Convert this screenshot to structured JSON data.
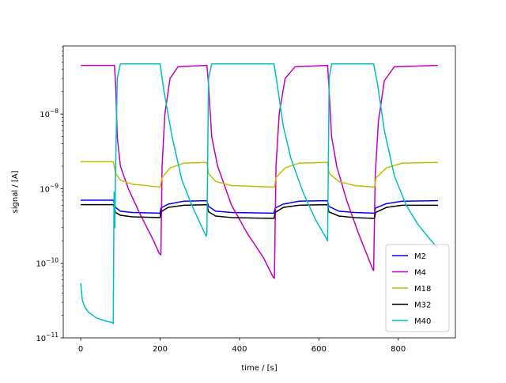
{
  "chart_data": {
    "type": "line",
    "title": "",
    "xlabel": "time / [s]",
    "ylabel": "signal / [A]",
    "yscale": "log",
    "xlim": [
      -44,
      944
    ],
    "ylim": [
      1e-11,
      8.2e-08
    ],
    "xticks": [
      0,
      200,
      400,
      600,
      800
    ],
    "xtick_labels": [
      "0",
      "200",
      "400",
      "600",
      "800"
    ],
    "yticks": [
      1e-11,
      1e-10,
      1e-09,
      1e-08
    ],
    "ytick_labels": [
      {
        "base": "10",
        "exp": "−11"
      },
      {
        "base": "10",
        "exp": "−10"
      },
      {
        "base": "10",
        "exp": "−9"
      },
      {
        "base": "10",
        "exp": "−8"
      }
    ],
    "grid": false,
    "legend_position": "lower right",
    "series": [
      {
        "name": "M2",
        "color": "#0000ff",
        "points": [
          [
            0,
            7e-10
          ],
          [
            82,
            7e-10
          ],
          [
            88,
            5.6e-10
          ],
          [
            100,
            5e-10
          ],
          [
            130,
            4.8e-10
          ],
          [
            200,
            4.7e-10
          ],
          [
            202,
            5.5e-10
          ],
          [
            220,
            6.2e-10
          ],
          [
            260,
            6.8e-10
          ],
          [
            318,
            6.9e-10
          ],
          [
            322,
            5.8e-10
          ],
          [
            340,
            5e-10
          ],
          [
            380,
            4.8e-10
          ],
          [
            487,
            4.7e-10
          ],
          [
            490,
            5.5e-10
          ],
          [
            510,
            6.2e-10
          ],
          [
            550,
            6.8e-10
          ],
          [
            622,
            6.9e-10
          ],
          [
            625,
            5.8e-10
          ],
          [
            650,
            5e-10
          ],
          [
            690,
            4.8e-10
          ],
          [
            740,
            4.7e-10
          ],
          [
            743,
            5.5e-10
          ],
          [
            770,
            6.3e-10
          ],
          [
            810,
            6.8e-10
          ],
          [
            900,
            6.9e-10
          ]
        ]
      },
      {
        "name": "M4",
        "color": "#bf00bf",
        "points": [
          [
            0,
            4.5e-08
          ],
          [
            85,
            4.5e-08
          ],
          [
            88,
            2.5e-08
          ],
          [
            92,
            5e-09
          ],
          [
            100,
            2e-09
          ],
          [
            120,
            1e-09
          ],
          [
            150,
            4.5e-10
          ],
          [
            180,
            2.2e-10
          ],
          [
            198,
            1.35e-10
          ],
          [
            202,
            1.3e-10
          ],
          [
            205,
            2e-09
          ],
          [
            212,
            1e-08
          ],
          [
            225,
            3e-08
          ],
          [
            245,
            4.3e-08
          ],
          [
            318,
            4.5e-08
          ],
          [
            322,
            2.5e-08
          ],
          [
            330,
            5e-09
          ],
          [
            345,
            2e-09
          ],
          [
            380,
            6e-10
          ],
          [
            420,
            2.5e-10
          ],
          [
            460,
            1.2e-10
          ],
          [
            485,
            6.5e-11
          ],
          [
            488,
            6.3e-11
          ],
          [
            492,
            2e-09
          ],
          [
            500,
            1e-08
          ],
          [
            515,
            3e-08
          ],
          [
            540,
            4.3e-08
          ],
          [
            622,
            4.5e-08
          ],
          [
            625,
            2.5e-08
          ],
          [
            632,
            5e-09
          ],
          [
            645,
            2e-09
          ],
          [
            670,
            7e-10
          ],
          [
            700,
            2.5e-10
          ],
          [
            735,
            8.5e-11
          ],
          [
            738,
            8e-11
          ],
          [
            742,
            1.5e-09
          ],
          [
            750,
            8e-09
          ],
          [
            765,
            2.8e-08
          ],
          [
            790,
            4.3e-08
          ],
          [
            900,
            4.5e-08
          ]
        ]
      },
      {
        "name": "M18",
        "color": "#bfbf00",
        "points": [
          [
            0,
            2.3e-09
          ],
          [
            82,
            2.3e-09
          ],
          [
            88,
            1.6e-09
          ],
          [
            100,
            1.3e-09
          ],
          [
            130,
            1.15e-09
          ],
          [
            200,
            1.05e-09
          ],
          [
            205,
            1.4e-09
          ],
          [
            225,
            1.9e-09
          ],
          [
            260,
            2.2e-09
          ],
          [
            318,
            2.25e-09
          ],
          [
            322,
            1.6e-09
          ],
          [
            340,
            1.25e-09
          ],
          [
            380,
            1.1e-09
          ],
          [
            488,
            1.05e-09
          ],
          [
            492,
            1.4e-09
          ],
          [
            515,
            1.9e-09
          ],
          [
            550,
            2.2e-09
          ],
          [
            622,
            2.25e-09
          ],
          [
            626,
            1.6e-09
          ],
          [
            650,
            1.25e-09
          ],
          [
            690,
            1.1e-09
          ],
          [
            740,
            1.05e-09
          ],
          [
            744,
            1.4e-09
          ],
          [
            770,
            1.9e-09
          ],
          [
            810,
            2.2e-09
          ],
          [
            900,
            2.25e-09
          ]
        ]
      },
      {
        "name": "M32",
        "color": "#000000",
        "points": [
          [
            0,
            6.1e-10
          ],
          [
            82,
            6.1e-10
          ],
          [
            88,
            4.8e-10
          ],
          [
            100,
            4.4e-10
          ],
          [
            130,
            4.2e-10
          ],
          [
            200,
            4.1e-10
          ],
          [
            202,
            4.9e-10
          ],
          [
            220,
            5.6e-10
          ],
          [
            260,
            6e-10
          ],
          [
            318,
            6.1e-10
          ],
          [
            322,
            4.9e-10
          ],
          [
            340,
            4.3e-10
          ],
          [
            380,
            4.1e-10
          ],
          [
            487,
            4e-10
          ],
          [
            490,
            4.8e-10
          ],
          [
            510,
            5.6e-10
          ],
          [
            550,
            6e-10
          ],
          [
            622,
            6.1e-10
          ],
          [
            625,
            4.9e-10
          ],
          [
            650,
            4.3e-10
          ],
          [
            690,
            4.1e-10
          ],
          [
            740,
            4e-10
          ],
          [
            743,
            4.8e-10
          ],
          [
            770,
            5.6e-10
          ],
          [
            810,
            6e-10
          ],
          [
            900,
            6e-10
          ]
        ]
      },
      {
        "name": "M40",
        "color": "#00bfbf",
        "points": [
          [
            0,
            5.4e-11
          ],
          [
            4,
            3.2e-11
          ],
          [
            10,
            2.6e-11
          ],
          [
            20,
            2.2e-11
          ],
          [
            40,
            1.85e-11
          ],
          [
            60,
            1.7e-11
          ],
          [
            80,
            1.6e-11
          ],
          [
            82,
            1.55e-11
          ],
          [
            84,
            9e-10
          ],
          [
            86,
            3e-10
          ],
          [
            88,
            2e-09
          ],
          [
            92,
            3e-08
          ],
          [
            100,
            4.7e-08
          ],
          [
            200,
            4.7e-08
          ],
          [
            210,
            2e-08
          ],
          [
            230,
            5e-09
          ],
          [
            255,
            1.3e-09
          ],
          [
            280,
            6e-10
          ],
          [
            300,
            3.5e-10
          ],
          [
            316,
            2.3e-10
          ],
          [
            318,
            2.5e-10
          ],
          [
            322,
            3e-08
          ],
          [
            330,
            4.7e-08
          ],
          [
            487,
            4.7e-08
          ],
          [
            495,
            2.5e-08
          ],
          [
            510,
            7e-09
          ],
          [
            530,
            2.5e-09
          ],
          [
            560,
            9e-10
          ],
          [
            590,
            4e-10
          ],
          [
            620,
            2.1e-10
          ],
          [
            622,
            2e-10
          ],
          [
            626,
            3e-08
          ],
          [
            632,
            4.7e-08
          ],
          [
            738,
            4.7e-08
          ],
          [
            748,
            2.5e-08
          ],
          [
            765,
            6e-09
          ],
          [
            790,
            1.5e-09
          ],
          [
            820,
            6e-10
          ],
          [
            850,
            3.3e-10
          ],
          [
            880,
            2.1e-10
          ],
          [
            900,
            1.6e-10
          ]
        ]
      }
    ]
  }
}
